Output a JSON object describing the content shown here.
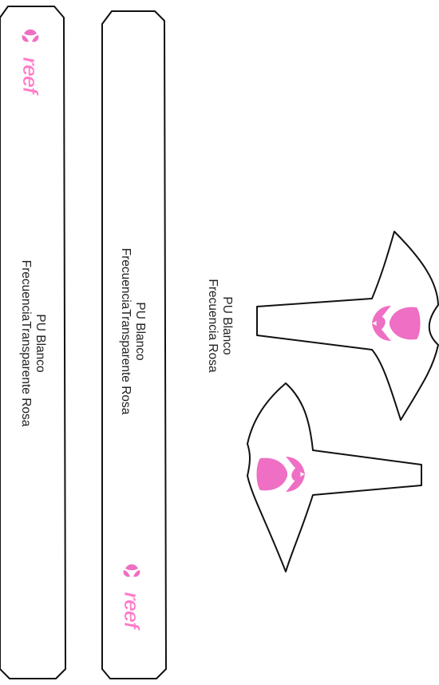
{
  "strips": [
    {
      "line1": "PU Blanco",
      "line2": "FrecuenciaTransparente Rosa",
      "brand": "reef"
    },
    {
      "line1": "PU Blanco",
      "line2": "FrecuenciaTransparente Rosa",
      "brand": "reef"
    }
  ],
  "sole": {
    "line1": "PU Blanco",
    "line2": "Frecuencia Rosa"
  },
  "colors": {
    "outline": "#111111",
    "pink": "#ee6fc3",
    "brand_pink": "#ff7ac8"
  }
}
